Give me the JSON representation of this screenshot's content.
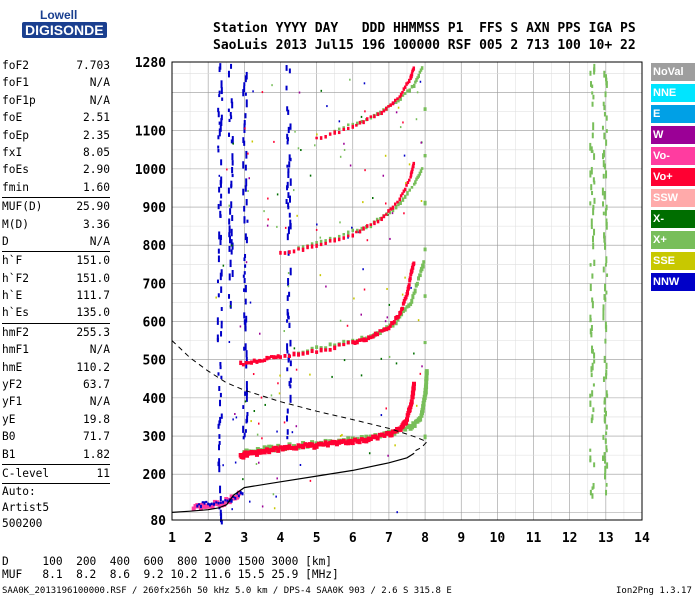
{
  "logo": {
    "line1": "Lowell",
    "line2": "DIGISONDE"
  },
  "header": {
    "line1": "Station YYYY DAY   DDD HHMMSS P1  FFS S AXN PPS IGA PS",
    "line2": "SaoLuis 2013 Jul15 196 100000 RSF 005 2 713 100 10+ 22"
  },
  "params": {
    "group1": [
      {
        "k": "foF2",
        "v": "7.703"
      },
      {
        "k": "foF1",
        "v": "N/A"
      },
      {
        "k": "foF1p",
        "v": "N/A"
      },
      {
        "k": "foE",
        "v": "2.51"
      },
      {
        "k": "foEp",
        "v": "2.35"
      },
      {
        "k": "fxI",
        "v": "8.05"
      },
      {
        "k": "foEs",
        "v": "2.90"
      },
      {
        "k": "fmin",
        "v": "1.60"
      }
    ],
    "group2": [
      {
        "k": "MUF(D)",
        "v": "25.90"
      },
      {
        "k": "M(D)",
        "v": "3.36"
      },
      {
        "k": "D",
        "v": "N/A"
      }
    ],
    "group3": [
      {
        "k": "h`F",
        "v": "151.0"
      },
      {
        "k": "h`F2",
        "v": "151.0"
      },
      {
        "k": "h`E",
        "v": "111.7"
      },
      {
        "k": "h`Es",
        "v": "135.0"
      }
    ],
    "group4": [
      {
        "k": "hmF2",
        "v": "255.3"
      },
      {
        "k": "hmF1",
        "v": "N/A"
      },
      {
        "k": "hmE",
        "v": "110.2"
      },
      {
        "k": "yF2",
        "v": "63.7"
      },
      {
        "k": "yF1",
        "v": "N/A"
      },
      {
        "k": "yE",
        "v": "19.8"
      },
      {
        "k": "B0",
        "v": "71.7"
      },
      {
        "k": "B1",
        "v": "1.82"
      }
    ],
    "group5": [
      {
        "k": "C-level",
        "v": "11"
      }
    ],
    "auto": [
      "Auto:",
      "Artist5",
      "500200"
    ]
  },
  "legend": [
    {
      "label": "NoVal",
      "color": "#9e9e9e"
    },
    {
      "label": "NNE",
      "color": "#00e5ff"
    },
    {
      "label": "E",
      "color": "#00a0e6"
    },
    {
      "label": "W",
      "color": "#9b0096"
    },
    {
      "label": "Vo-",
      "color": "#ff3ca0"
    },
    {
      "label": "Vo+",
      "color": "#ff0032"
    },
    {
      "label": "SSW",
      "color": "#ffaaaa"
    },
    {
      "label": "X-",
      "color": "#006e00"
    },
    {
      "label": "X+",
      "color": "#78be5a"
    },
    {
      "label": "SSE",
      "color": "#c8c800"
    },
    {
      "label": "NNW",
      "color": "#0000c8"
    }
  ],
  "muf_table": {
    "d_line": "D     100  200  400  600  800 1000 1500 3000 [km]",
    "muf_line": "MUF   8.1  8.2  8.6  9.2 10.2 11.6 15.5 25.9 [MHz]"
  },
  "footer": {
    "left": "SAA0K_2013196100000.RSF / 260fx256h 50 kHz 5.0 km / DPS-4 SAA0K 903 / 2.6 S 315.8 E",
    "right": "Ion2Png 1.3.17"
  },
  "chart_data": {
    "type": "scatter",
    "xlim": [
      1,
      14
    ],
    "ylim": [
      80,
      1280
    ],
    "xticks": [
      1,
      2,
      3,
      4,
      5,
      6,
      7,
      8,
      9,
      10,
      11,
      12,
      13,
      14
    ],
    "yticks": [
      80,
      200,
      300,
      400,
      500,
      600,
      700,
      800,
      900,
      1000,
      1100,
      1280
    ],
    "grid": true,
    "traces": {
      "o_trace_1": [
        [
          2.9,
          250
        ],
        [
          3.1,
          255
        ],
        [
          3.5,
          262
        ],
        [
          4.0,
          268
        ],
        [
          4.5,
          273
        ],
        [
          5.0,
          278
        ],
        [
          5.5,
          283
        ],
        [
          6.0,
          288
        ],
        [
          6.5,
          295
        ],
        [
          7.0,
          305
        ],
        [
          7.3,
          318
        ],
        [
          7.5,
          345
        ],
        [
          7.65,
          400
        ],
        [
          7.7,
          440
        ]
      ],
      "x_trace_1": [
        [
          3.0,
          258
        ],
        [
          3.5,
          266
        ],
        [
          4.0,
          272
        ],
        [
          5.0,
          282
        ],
        [
          6.0,
          292
        ],
        [
          7.0,
          308
        ],
        [
          7.6,
          325
        ],
        [
          7.9,
          350
        ],
        [
          8.02,
          420
        ],
        [
          8.05,
          480
        ]
      ],
      "o_trace_2": [
        [
          2.9,
          490
        ],
        [
          3.5,
          500
        ],
        [
          4.0,
          510
        ],
        [
          5.0,
          522
        ],
        [
          6.0,
          545
        ],
        [
          6.5,
          560
        ],
        [
          7.0,
          585
        ],
        [
          7.3,
          620
        ],
        [
          7.5,
          670
        ],
        [
          7.62,
          730
        ],
        [
          7.7,
          760
        ]
      ],
      "x_trace_2": [
        [
          4.5,
          520
        ],
        [
          5.5,
          540
        ],
        [
          6.5,
          562
        ],
        [
          7.2,
          600
        ],
        [
          7.6,
          650
        ],
        [
          7.85,
          720
        ],
        [
          7.98,
          760
        ]
      ],
      "o_trace_3": [
        [
          4.0,
          780
        ],
        [
          5.0,
          800
        ],
        [
          6.0,
          830
        ],
        [
          6.8,
          870
        ],
        [
          7.3,
          920
        ],
        [
          7.6,
          980
        ],
        [
          7.7,
          1020
        ]
      ],
      "x_trace_3": [
        [
          4.5,
          795
        ],
        [
          5.5,
          820
        ],
        [
          6.5,
          855
        ],
        [
          7.2,
          900
        ],
        [
          7.7,
          960
        ],
        [
          7.95,
          1010
        ]
      ],
      "o_trace_4": [
        [
          5.0,
          1080
        ],
        [
          6.0,
          1110
        ],
        [
          6.8,
          1150
        ],
        [
          7.3,
          1190
        ],
        [
          7.6,
          1240
        ],
        [
          7.7,
          1270
        ]
      ],
      "x_trace_4": [
        [
          5.5,
          1100
        ],
        [
          6.5,
          1135
        ],
        [
          7.2,
          1175
        ],
        [
          7.7,
          1220
        ],
        [
          7.95,
          1270
        ]
      ],
      "es_trace": [
        [
          1.6,
          115
        ],
        [
          2.0,
          120
        ],
        [
          2.5,
          130
        ],
        [
          2.9,
          150
        ]
      ]
    },
    "profile_solid": [
      [
        1.0,
        100
      ],
      [
        1.5,
        103
      ],
      [
        2.0,
        107
      ],
      [
        2.3,
        112
      ],
      [
        2.51,
        120
      ],
      [
        2.7,
        145
      ],
      [
        3.0,
        165
      ],
      [
        4.0,
        180
      ],
      [
        5.0,
        195
      ],
      [
        6.0,
        210
      ],
      [
        7.0,
        230
      ],
      [
        7.5,
        243
      ],
      [
        7.7,
        255
      ]
    ],
    "profile_dashed": [
      [
        1.0,
        550
      ],
      [
        1.5,
        505
      ],
      [
        2.0,
        470
      ],
      [
        2.5,
        440
      ],
      [
        3.0,
        420
      ],
      [
        4.0,
        390
      ],
      [
        5.0,
        365
      ],
      [
        6.0,
        343
      ],
      [
        7.0,
        320
      ],
      [
        7.5,
        305
      ],
      [
        7.8,
        295
      ],
      [
        8.05,
        285
      ],
      [
        7.9,
        270
      ],
      [
        7.7,
        260
      ]
    ],
    "vertical_x": [
      [
        8.0,
        300
      ],
      [
        8.0,
        1280
      ]
    ],
    "noise_columns": [
      {
        "x": 2.3,
        "ymin": 80,
        "ymax": 1280,
        "color": "#0000c8"
      },
      {
        "x": 2.6,
        "ymin": 600,
        "ymax": 1280,
        "color": "#0000c8"
      },
      {
        "x": 3.0,
        "ymin": 300,
        "ymax": 1280,
        "color": "#0000c8"
      },
      {
        "x": 4.2,
        "ymin": 300,
        "ymax": 1280,
        "color": "#0000c8"
      },
      {
        "x": 12.6,
        "ymin": 150,
        "ymax": 1280,
        "color": "#78be5a"
      },
      {
        "x": 12.95,
        "ymin": 150,
        "ymax": 1280,
        "color": "#78be5a"
      }
    ]
  }
}
